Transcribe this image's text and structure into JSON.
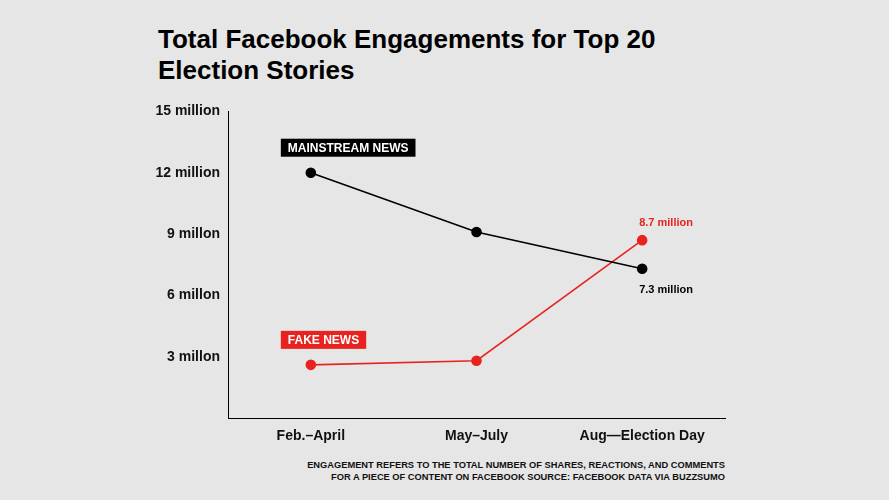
{
  "chart_data": {
    "type": "line",
    "title": "Total Facebook Engagements for Top 20 Election Stories",
    "note": [
      "ENGAGEMENT REFERS TO THE TOTAL NUMBER OF SHARES, REACTIONS, AND COMMENTS",
      "FOR A PIECE OF CONTENT ON FACEBOOK SOURCE: FACEBOOK DATA VIA BUZZSUMO"
    ],
    "categories": [
      "Feb.–April",
      "May–July",
      "Aug—Election Day"
    ],
    "series": [
      {
        "name": "MAINSTREAM NEWS",
        "color": "#000000",
        "values": [
          12,
          9.1,
          7.3
        ],
        "value_labels": [
          null,
          null,
          "7.3 million"
        ]
      },
      {
        "name": "FAKE NEWS",
        "color": "#e8231f",
        "values": [
          2.6,
          2.8,
          8.7
        ],
        "value_labels": [
          null,
          null,
          "8.7 million"
        ]
      }
    ],
    "ylim": [
      0,
      15
    ],
    "yticks": [
      {
        "value": 3,
        "label": "3 millon"
      },
      {
        "value": 6,
        "label": "6 millon"
      },
      {
        "value": 9,
        "label": "9 millon"
      },
      {
        "value": 12,
        "label": "12 million"
      },
      {
        "value": 15,
        "label": "15 million"
      }
    ],
    "grid": false,
    "data_labels": true,
    "marker": "circle"
  }
}
